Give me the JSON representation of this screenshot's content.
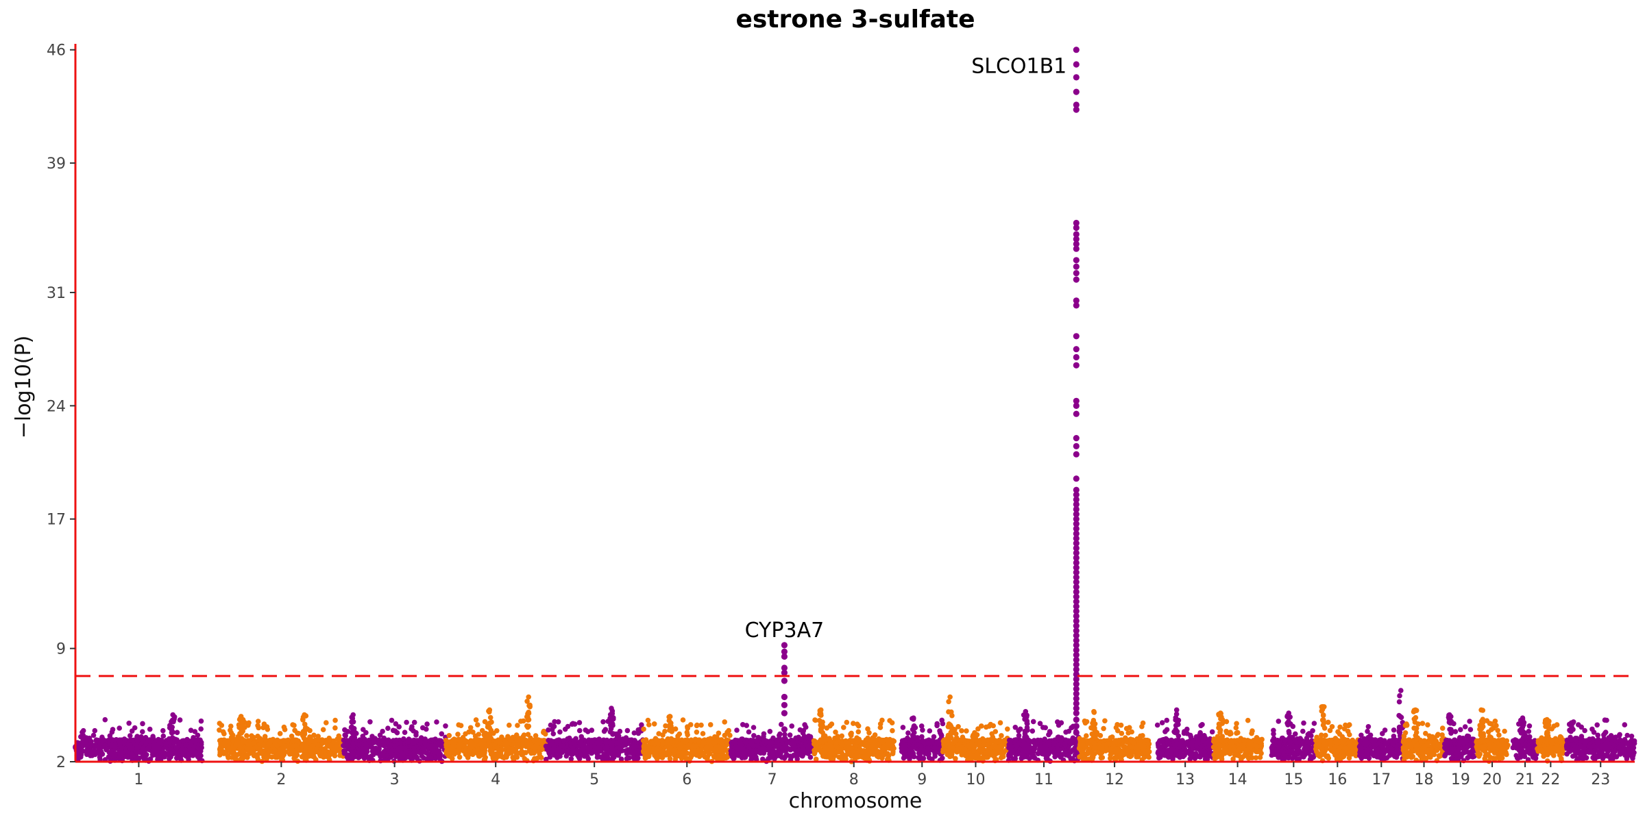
{
  "chart_data": {
    "type": "scatter",
    "subtype": "manhattan",
    "title": "estrone 3-sulfate",
    "xlabel": "chromosome",
    "ylabel": "−log10(P)",
    "ylim": [
      2,
      46.2
    ],
    "yticks": [
      2,
      9,
      17,
      24,
      31,
      39,
      46
    ],
    "significance_threshold": 7.3,
    "colors": {
      "odd": "#8B008B",
      "even": "#F07A0A",
      "axis": "#EE1111",
      "threshold": "#EE1111"
    },
    "chromosomes": [
      {
        "label": "1",
        "start": 0,
        "end": 26
      },
      {
        "label": "2",
        "start": 29.5,
        "end": 55
      },
      {
        "label": "3",
        "start": 55,
        "end": 76
      },
      {
        "label": "4",
        "start": 76,
        "end": 96.5
      },
      {
        "label": "5",
        "start": 96.5,
        "end": 116.5
      },
      {
        "label": "6",
        "start": 116.5,
        "end": 134.5
      },
      {
        "label": "7",
        "start": 134.5,
        "end": 151.5
      },
      {
        "label": "8",
        "start": 151.5,
        "end": 168
      },
      {
        "label": "9",
        "start": 169.5,
        "end": 178
      },
      {
        "label": "10",
        "start": 178,
        "end": 191.5
      },
      {
        "label": "11",
        "start": 191.5,
        "end": 206
      },
      {
        "label": "12",
        "start": 206,
        "end": 220.5
      },
      {
        "label": "13",
        "start": 222,
        "end": 233.5
      },
      {
        "label": "14",
        "start": 233.5,
        "end": 243.5
      },
      {
        "label": "15",
        "start": 245.5,
        "end": 254.5
      },
      {
        "label": "16",
        "start": 254.5,
        "end": 263.5
      },
      {
        "label": "17",
        "start": 263.5,
        "end": 272.5
      },
      {
        "label": "18",
        "start": 272.5,
        "end": 281
      },
      {
        "label": "19",
        "start": 281,
        "end": 287.5
      },
      {
        "label": "20",
        "start": 287.5,
        "end": 294
      },
      {
        "label": "21",
        "start": 295,
        "end": 300
      },
      {
        "label": "22",
        "start": 300,
        "end": 305.5
      },
      {
        "label": "23",
        "start": 306,
        "end": 320
      }
    ],
    "peaks": [
      {
        "chrom": "1",
        "x": 20,
        "y": 4.9
      },
      {
        "chrom": "2",
        "x": 34,
        "y": 4.8
      },
      {
        "chrom": "2",
        "x": 47,
        "y": 4.9
      },
      {
        "chrom": "3",
        "x": 57,
        "y": 4.9
      },
      {
        "chrom": "4",
        "x": 85,
        "y": 5.2
      },
      {
        "chrom": "4",
        "x": 93,
        "y": 6.0
      },
      {
        "chrom": "5",
        "x": 110,
        "y": 5.3
      },
      {
        "chrom": "6",
        "x": 122,
        "y": 4.8
      },
      {
        "chrom": "8",
        "x": 153,
        "y": 5.2
      },
      {
        "chrom": "9",
        "x": 172,
        "y": 4.7
      },
      {
        "chrom": "10",
        "x": 179.5,
        "y": 6.0
      },
      {
        "chrom": "11",
        "x": 195,
        "y": 5.1
      },
      {
        "chrom": "12",
        "x": 209,
        "y": 5.1
      },
      {
        "chrom": "13",
        "x": 226,
        "y": 5.2
      },
      {
        "chrom": "14",
        "x": 235,
        "y": 5.0
      },
      {
        "chrom": "15",
        "x": 249,
        "y": 5.0
      },
      {
        "chrom": "16",
        "x": 256,
        "y": 5.4
      },
      {
        "chrom": "17",
        "x": 272,
        "y": 6.4
      },
      {
        "chrom": "18",
        "x": 275,
        "y": 5.2
      },
      {
        "chrom": "19",
        "x": 282,
        "y": 4.9
      },
      {
        "chrom": "20",
        "x": 288.5,
        "y": 5.2
      },
      {
        "chrom": "21",
        "x": 297,
        "y": 4.7
      },
      {
        "chrom": "22",
        "x": 302,
        "y": 4.6
      },
      {
        "chrom": "23",
        "x": 307,
        "y": 4.4
      }
    ],
    "highlight_columns": [
      {
        "chrom": "7",
        "x": 145.5,
        "values": [
          4.0,
          5.0,
          5.5,
          6.0,
          7.0,
          7.5,
          7.8,
          8.5,
          8.8,
          9.2
        ]
      },
      {
        "chrom": "11",
        "x": 205.4,
        "values": [
          3.8,
          4.2,
          4.6,
          5.0,
          5.3,
          5.6,
          5.9,
          6.2,
          6.5,
          6.8,
          7.1,
          7.4,
          7.7,
          8.0,
          8.3,
          8.6,
          8.9,
          9.2,
          9.5,
          9.8,
          10.1,
          10.4,
          10.7,
          11.0,
          11.3,
          11.6,
          11.9,
          12.2,
          12.5,
          12.8,
          13.1,
          13.4,
          13.7,
          14.0,
          14.3,
          14.6,
          14.9,
          15.2,
          15.5,
          15.8,
          16.1,
          16.4,
          16.7,
          17.0,
          17.3,
          17.6,
          17.9,
          18.2,
          18.5,
          18.8,
          19.5,
          21.0,
          21.5,
          22.0,
          23.5,
          24.0,
          24.3,
          26.5,
          27.0,
          27.5,
          28.3,
          30.2,
          30.5,
          31.8,
          32.2,
          32.6,
          33.0,
          33.7,
          34.0,
          34.3,
          34.6,
          35.0,
          35.3,
          42.3,
          42.6,
          43.4,
          44.3,
          45.1,
          46.0
        ]
      }
    ],
    "annotations": [
      {
        "label": "CYP3A7",
        "x": 145.5,
        "y": 9.2
      },
      {
        "label": "SLCO1B1",
        "x": 205.4,
        "y": 46.0
      }
    ]
  }
}
